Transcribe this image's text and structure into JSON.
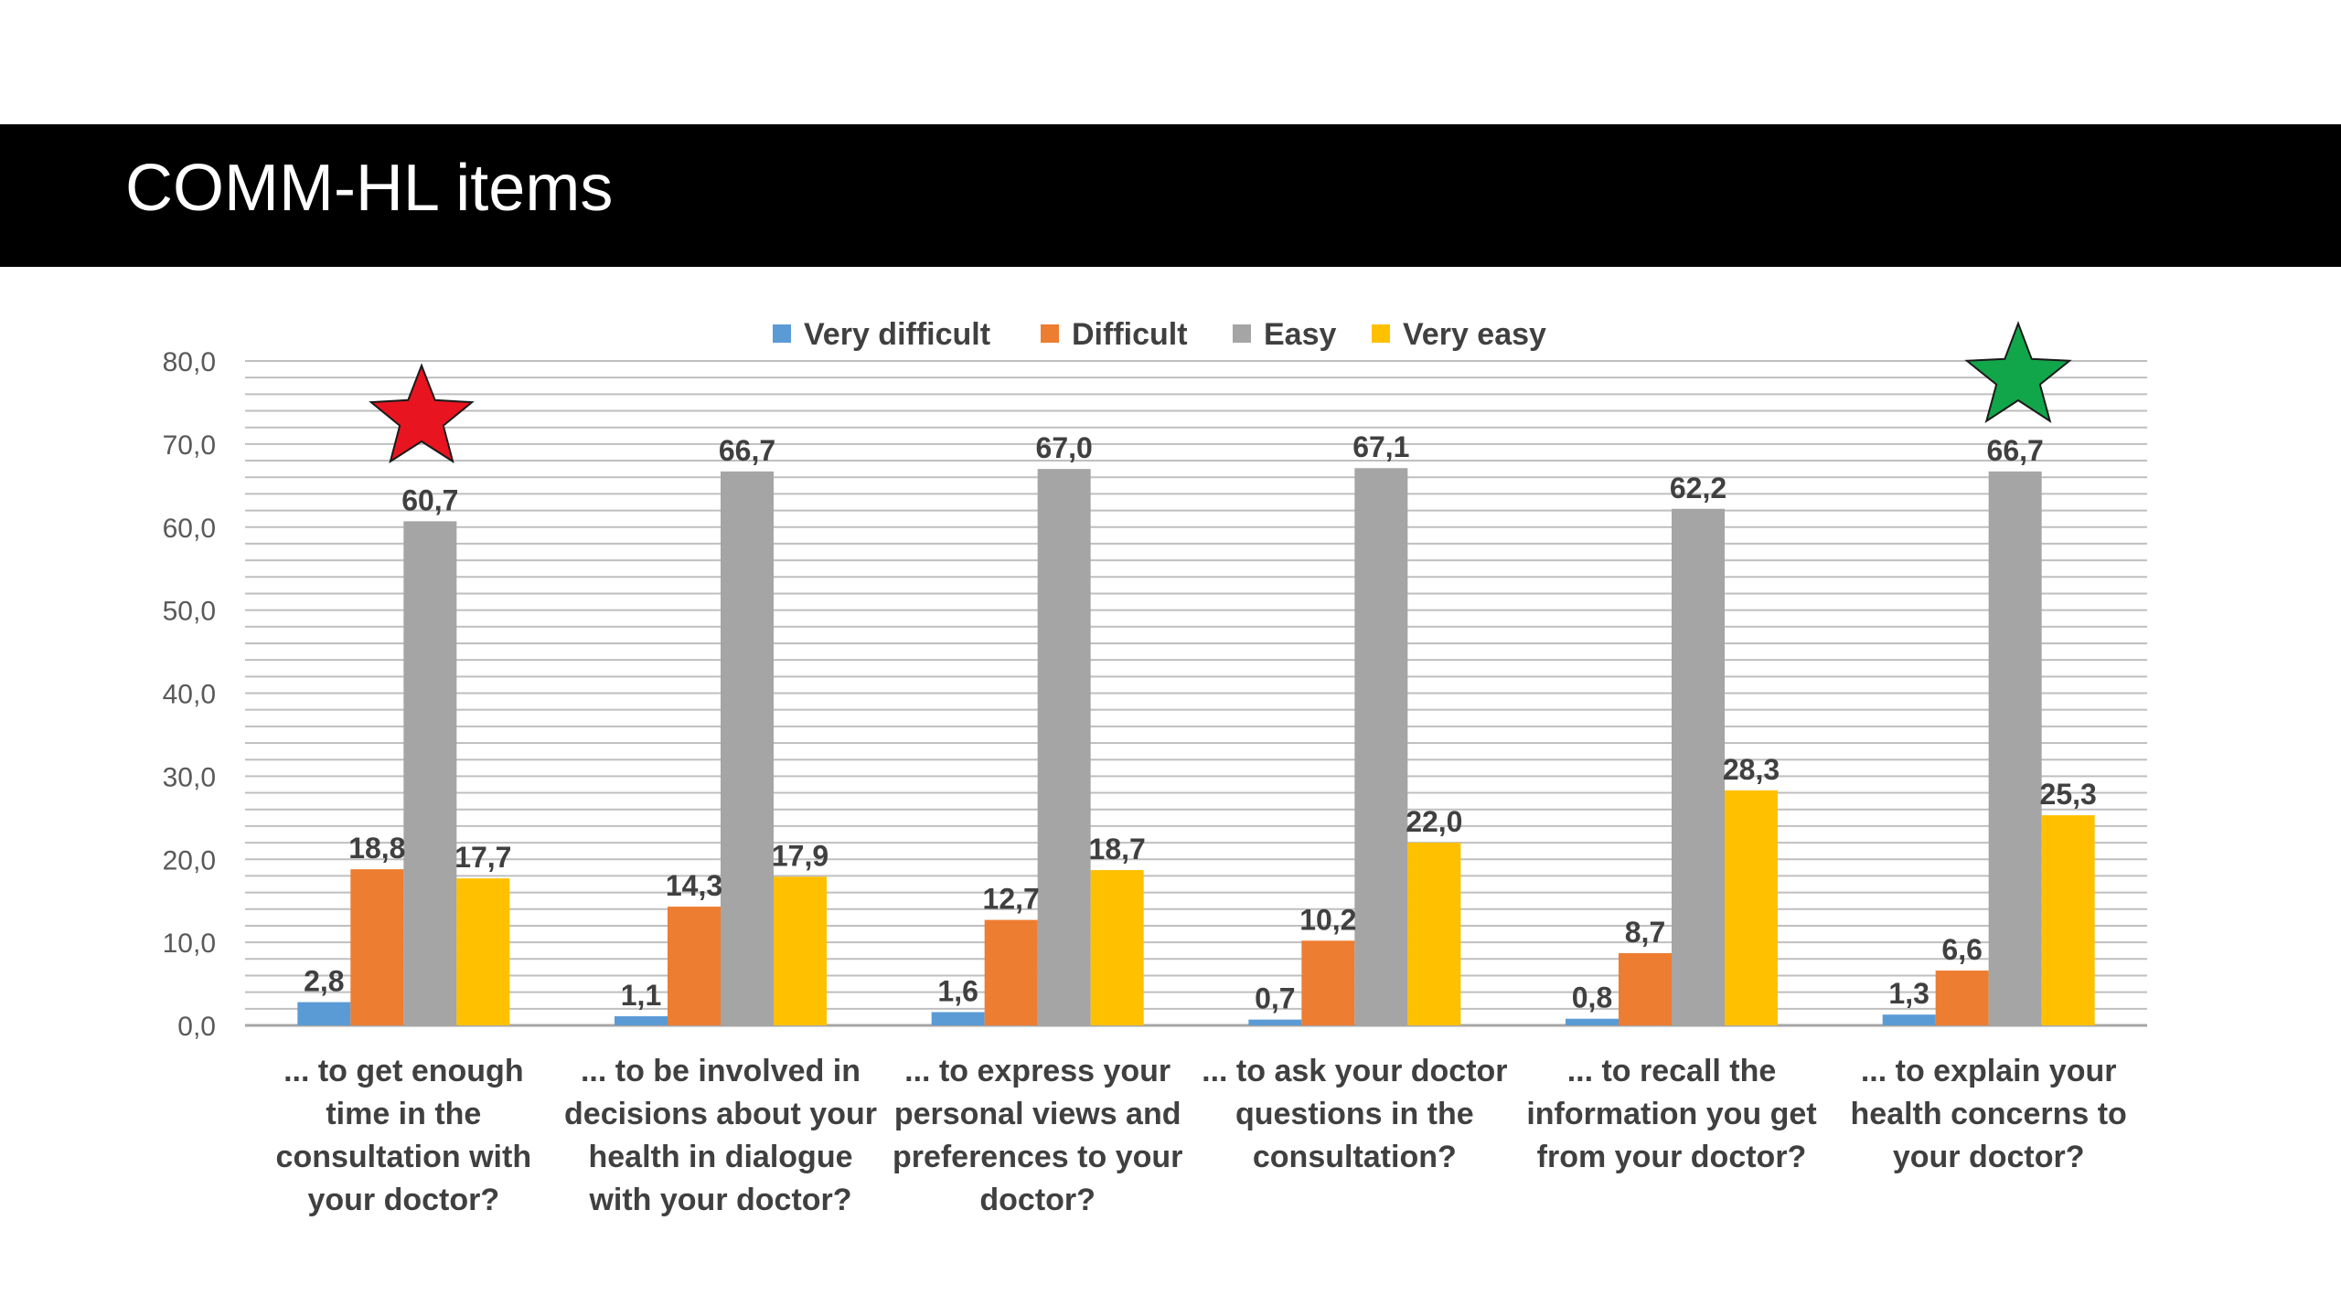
{
  "slide": {
    "title": "COMM-HL items"
  },
  "colors": {
    "Very difficult": "#5b9bd5",
    "Difficult": "#ed7d31",
    "Easy": "#a5a5a5",
    "Very easy": "#ffc000",
    "star_left": "#e8141f",
    "star_right": "#12a64a",
    "gridline": "#bfbfbf",
    "text": "#404040"
  },
  "annotations": [
    {
      "type": "star",
      "color": "red",
      "category_index": 0
    },
    {
      "type": "star",
      "color": "green",
      "category_index": 5
    }
  ],
  "chart_data": {
    "type": "bar",
    "title": "",
    "xlabel": "",
    "ylabel": "",
    "ylim": [
      0,
      80
    ],
    "yticks": [
      "0,0",
      "10,0",
      "20,0",
      "30,0",
      "40,0",
      "50,0",
      "60,0",
      "70,0",
      "80,0"
    ],
    "grid": true,
    "legend_position": "top",
    "categories": [
      [
        "... to get enough",
        "time in the",
        "consultation with",
        "your doctor?"
      ],
      [
        "... to be involved in",
        "decisions about your",
        "health in dialogue",
        "with your doctor?"
      ],
      [
        "... to express your",
        "personal views and",
        "preferences to your",
        "doctor?"
      ],
      [
        "... to ask your doctor",
        "questions in the",
        "consultation?"
      ],
      [
        "... to recall the",
        "information you get",
        "from your doctor?"
      ],
      [
        "... to explain your",
        "health concerns to",
        "your doctor?"
      ]
    ],
    "series": [
      {
        "name": "Very difficult",
        "values": [
          2.8,
          1.1,
          1.6,
          0.7,
          0.8,
          1.3
        ],
        "labels": [
          "2,8",
          "1,1",
          "1,6",
          "0,7",
          "0,8",
          "1,3"
        ]
      },
      {
        "name": "Difficult",
        "values": [
          18.8,
          14.3,
          12.7,
          10.2,
          8.7,
          6.6
        ],
        "labels": [
          "18,8",
          "14,3",
          "12,7",
          "10,2",
          "8,7",
          "6,6"
        ]
      },
      {
        "name": "Easy",
        "values": [
          60.7,
          66.7,
          67.0,
          67.1,
          62.2,
          66.7
        ],
        "labels": [
          "60,7",
          "66,7",
          "67,0",
          "67,1",
          "62,2",
          "66,7"
        ]
      },
      {
        "name": "Very easy",
        "values": [
          17.7,
          17.9,
          18.7,
          22.0,
          28.3,
          25.3
        ],
        "labels": [
          "17,7",
          "17,9",
          "18,7",
          "22,0",
          "28,3",
          "25,3"
        ]
      }
    ]
  }
}
